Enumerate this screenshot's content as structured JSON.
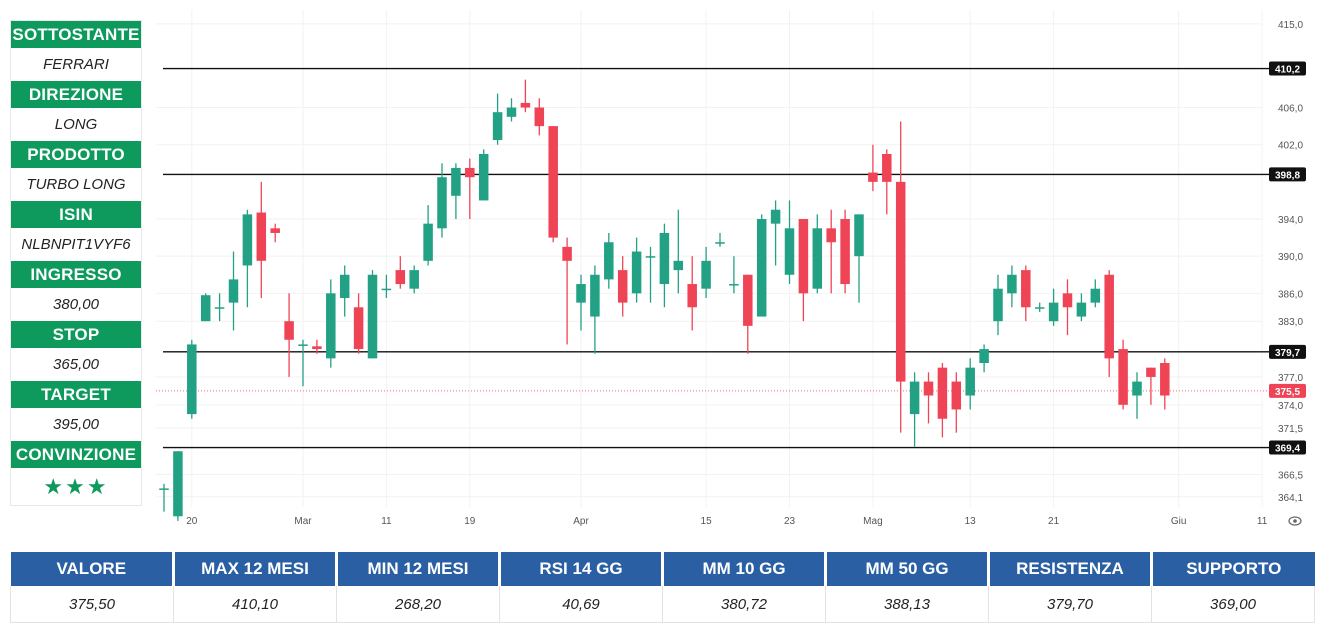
{
  "left_panel": [
    {
      "label": "SOTTOSTANTE",
      "value": "FERRARI"
    },
    {
      "label": "DIREZIONE",
      "value": "LONG"
    },
    {
      "label": "PRODOTTO",
      "value": "TURBO LONG"
    },
    {
      "label": "ISIN",
      "value": "NLBNPIT1VYF6"
    },
    {
      "label": "INGRESSO",
      "value": "380,00"
    },
    {
      "label": "STOP",
      "value": "365,00"
    },
    {
      "label": "TARGET",
      "value": "395,00"
    },
    {
      "label": "CONVINZIONE",
      "value": "★★★"
    }
  ],
  "bottom_table": {
    "headers": [
      "VALORE",
      "MAX 12 MESI",
      "MIN 12 MESI",
      "RSI 14 GG",
      "MM 10 GG",
      "MM 50 GG",
      "RESISTENZA",
      "SUPPORTO"
    ],
    "values": [
      "375,50",
      "410,10",
      "268,20",
      "40,69",
      "380,72",
      "388,13",
      "379,70",
      "369,00"
    ]
  },
  "colors": {
    "up": "#22a184",
    "down": "#ef4456",
    "panel_green": "#0d9a5c",
    "table_blue": "#2a5fa3"
  },
  "chart_data": {
    "type": "candlestick",
    "ylim": [
      363.0,
      416.5
    ],
    "y_ticks": [
      "415,0",
      "406,0",
      "402,0",
      "394,0",
      "390,0",
      "386,0",
      "383,0",
      "377,0",
      "374,0",
      "371,5",
      "366,5",
      "364,1"
    ],
    "x_ticks": [
      {
        "label": "20",
        "i": 2
      },
      {
        "label": "Mar",
        "i": 10
      },
      {
        "label": "11",
        "i": 16
      },
      {
        "label": "19",
        "i": 22
      },
      {
        "label": "Apr",
        "i": 30
      },
      {
        "label": "15",
        "i": 39
      },
      {
        "label": "23",
        "i": 45
      },
      {
        "label": "Mag",
        "i": 51
      },
      {
        "label": "13",
        "i": 58
      },
      {
        "label": "21",
        "i": 64
      },
      {
        "label": "Giu",
        "i": 73
      },
      {
        "label": "11",
        "i": 79
      }
    ],
    "horizontal_lines": [
      {
        "value": 410.2,
        "label": "410,2"
      },
      {
        "value": 398.8,
        "label": "398,8"
      },
      {
        "value": 379.7,
        "label": "379,7"
      },
      {
        "value": 369.4,
        "label": "369,4"
      }
    ],
    "current_price": {
      "value": 375.5,
      "label": "375,5"
    },
    "candles": [
      [
        365.0,
        365.0,
        362.5,
        365.5
      ],
      [
        362.0,
        369.0,
        361.5,
        369.0
      ],
      [
        373.0,
        380.5,
        372.5,
        381.0
      ],
      [
        383.0,
        385.8,
        383.0,
        386.0
      ],
      [
        384.5,
        384.5,
        383.0,
        386.0
      ],
      [
        385.0,
        387.5,
        382.0,
        390.5
      ],
      [
        389.0,
        394.5,
        384.5,
        395.0
      ],
      [
        394.7,
        389.5,
        385.5,
        398.0
      ],
      [
        393.0,
        392.5,
        391.5,
        393.5
      ],
      [
        383.0,
        381.0,
        377.0,
        386.0
      ],
      [
        380.5,
        380.5,
        376.0,
        381.0
      ],
      [
        380.3,
        380.0,
        379.5,
        381.0
      ],
      [
        379.0,
        386.0,
        378.0,
        387.5
      ],
      [
        385.5,
        388.0,
        383.5,
        389.0
      ],
      [
        384.5,
        380.0,
        379.5,
        386.0
      ],
      [
        379.0,
        388.0,
        379.0,
        388.5
      ],
      [
        386.5,
        386.5,
        385.5,
        388.0
      ],
      [
        388.5,
        387.0,
        386.5,
        390.0
      ],
      [
        386.5,
        388.5,
        386.0,
        389.0
      ],
      [
        389.5,
        393.5,
        389.0,
        395.5
      ],
      [
        393.0,
        398.5,
        392.0,
        400.0
      ],
      [
        396.5,
        399.5,
        394.0,
        400.0
      ],
      [
        399.5,
        398.5,
        394.0,
        400.5
      ],
      [
        396.0,
        401.0,
        396.0,
        401.5
      ],
      [
        402.5,
        405.5,
        402.0,
        407.5
      ],
      [
        405.0,
        406.0,
        404.5,
        407.0
      ],
      [
        406.5,
        406.0,
        405.5,
        409.0
      ],
      [
        406.0,
        404.0,
        403.0,
        407.0
      ],
      [
        404.0,
        392.0,
        391.5,
        404.0
      ],
      [
        391.0,
        389.5,
        380.5,
        392.0
      ],
      [
        385.0,
        387.0,
        382.0,
        388.0
      ],
      [
        383.5,
        388.0,
        379.5,
        389.0
      ],
      [
        387.5,
        391.5,
        386.5,
        392.5
      ],
      [
        388.5,
        385.0,
        383.5,
        390.0
      ],
      [
        386.0,
        390.5,
        385.0,
        392.0
      ],
      [
        390.0,
        390.0,
        385.0,
        391.0
      ],
      [
        387.0,
        392.5,
        384.5,
        393.5
      ],
      [
        388.5,
        389.5,
        386.0,
        395.0
      ],
      [
        387.0,
        384.5,
        382.0,
        390.0
      ],
      [
        386.5,
        389.5,
        385.5,
        391.0
      ],
      [
        391.5,
        391.5,
        391.0,
        392.5
      ],
      [
        387.0,
        387.0,
        386.0,
        390.0
      ],
      [
        388.0,
        382.5,
        379.5,
        388.0
      ],
      [
        383.5,
        394.0,
        383.5,
        394.5
      ],
      [
        393.5,
        395.0,
        389.0,
        396.0
      ],
      [
        388.0,
        393.0,
        387.0,
        396.0
      ],
      [
        394.0,
        386.0,
        383.0,
        394.0
      ],
      [
        386.5,
        393.0,
        386.0,
        394.5
      ],
      [
        393.0,
        391.5,
        386.0,
        395.0
      ],
      [
        394.0,
        387.0,
        386.0,
        395.0
      ],
      [
        390.0,
        394.5,
        385.0,
        394.5
      ],
      [
        399.0,
        398.0,
        397.0,
        402.0
      ],
      [
        401.0,
        398.0,
        394.5,
        401.5
      ],
      [
        398.0,
        376.5,
        371.0,
        404.5
      ],
      [
        373.0,
        376.5,
        369.5,
        377.5
      ],
      [
        376.5,
        375.0,
        372.0,
        377.5
      ],
      [
        378.0,
        372.5,
        370.5,
        378.5
      ],
      [
        376.5,
        373.5,
        371.0,
        377.5
      ],
      [
        375.0,
        378.0,
        373.5,
        379.0
      ],
      [
        378.5,
        380.0,
        377.5,
        380.5
      ],
      [
        383.0,
        386.5,
        381.5,
        388.0
      ],
      [
        386.0,
        388.0,
        384.5,
        389.0
      ],
      [
        388.5,
        384.5,
        383.0,
        389.0
      ],
      [
        384.5,
        384.5,
        384.0,
        385.0
      ],
      [
        383.0,
        385.0,
        382.5,
        386.5
      ],
      [
        386.0,
        384.5,
        381.5,
        387.5
      ],
      [
        383.5,
        385.0,
        383.0,
        386.0
      ],
      [
        385.0,
        386.5,
        384.5,
        387.5
      ],
      [
        388.0,
        379.0,
        377.0,
        388.5
      ],
      [
        380.0,
        374.0,
        373.5,
        381.0
      ],
      [
        375.0,
        376.5,
        372.5,
        377.5
      ],
      [
        378.0,
        377.0,
        374.0,
        378.0
      ],
      [
        378.5,
        375.0,
        373.5,
        379.0
      ]
    ]
  }
}
